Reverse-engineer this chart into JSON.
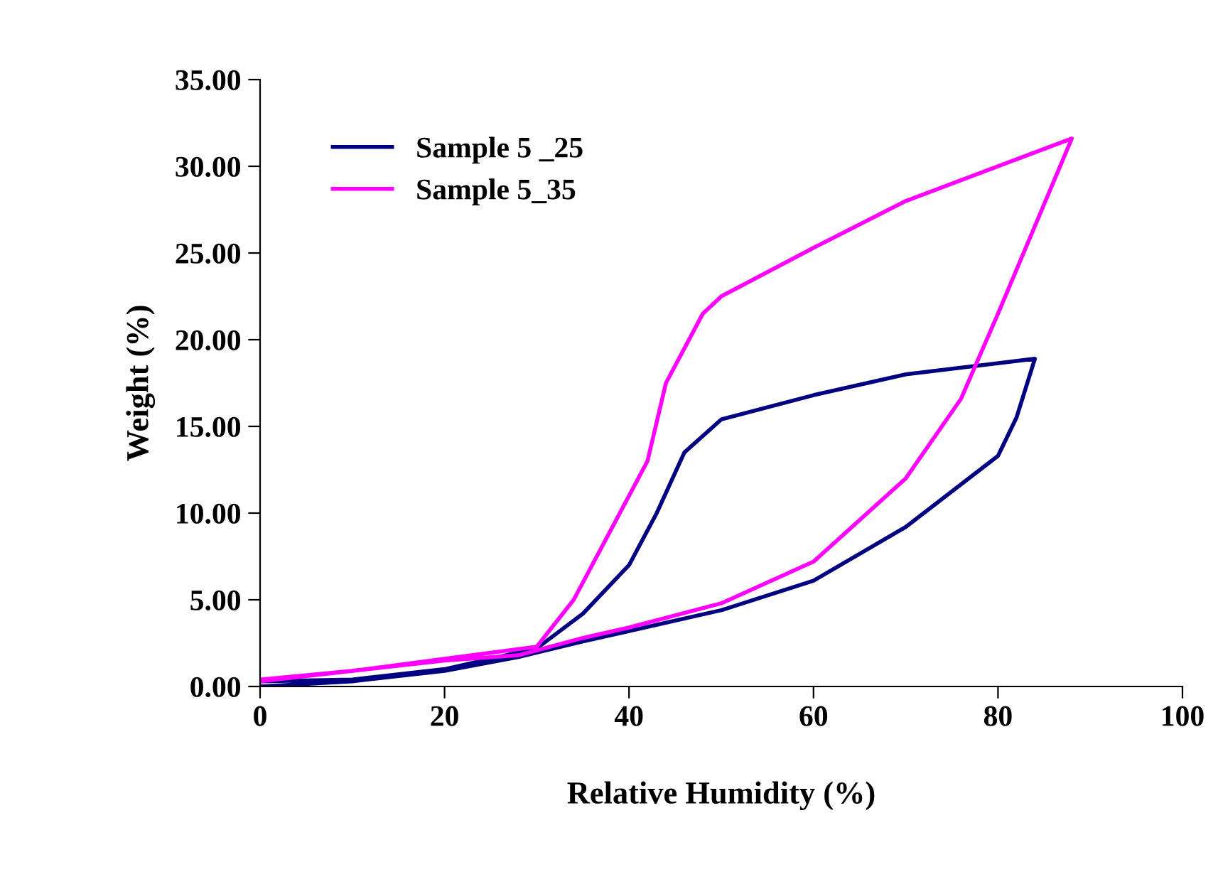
{
  "chart_data": {
    "type": "line",
    "xlabel": "Relative Humidity (%)",
    "ylabel": "Weight (%)",
    "xlim": [
      0,
      100
    ],
    "xticks": [
      0,
      20,
      40,
      60,
      80,
      100
    ],
    "ylim": [
      0,
      35
    ],
    "yticks": [
      {
        "value": 0,
        "label": "0.00"
      },
      {
        "value": 5,
        "label": "5.00"
      },
      {
        "value": 10,
        "label": "10.00"
      },
      {
        "value": 15,
        "label": "15.00"
      },
      {
        "value": 20,
        "label": "20.00"
      },
      {
        "value": 25,
        "label": "25.00"
      },
      {
        "value": 30,
        "label": "30.00"
      },
      {
        "value": 35,
        "label": "35.00"
      }
    ],
    "legend": "top left",
    "grid": false,
    "marker": "none",
    "line_style": "solid",
    "series": [
      {
        "name": "Sample 5 _25",
        "color": "#000080",
        "x": [
          0,
          10,
          20,
          28,
          35,
          40,
          50,
          60,
          70,
          80,
          82,
          84,
          70,
          60,
          50,
          46,
          43,
          40,
          35,
          30,
          20,
          10,
          0
        ],
        "values": [
          0,
          0.3,
          0.9,
          1.7,
          2.6,
          3.2,
          4.4,
          6.1,
          9.2,
          13.3,
          15.5,
          18.9,
          18,
          16.8,
          15.4,
          13.5,
          10,
          7,
          4.2,
          2.2,
          1,
          0.4,
          0.3
        ]
      },
      {
        "name": "Sample 5_35",
        "color": "#ff00ff",
        "x": [
          0,
          20,
          28,
          35,
          40,
          50,
          60,
          70,
          76,
          80,
          88,
          70,
          60,
          50,
          48,
          44,
          42,
          38,
          34,
          30,
          20,
          10,
          0
        ],
        "values": [
          0.3,
          1.5,
          1.8,
          2.8,
          3.4,
          4.8,
          7.2,
          12,
          16.6,
          21.5,
          31.6,
          28,
          25.3,
          22.5,
          21.5,
          17.5,
          13,
          9,
          5,
          2.3,
          1.6,
          0.9,
          0.4
        ]
      }
    ]
  }
}
